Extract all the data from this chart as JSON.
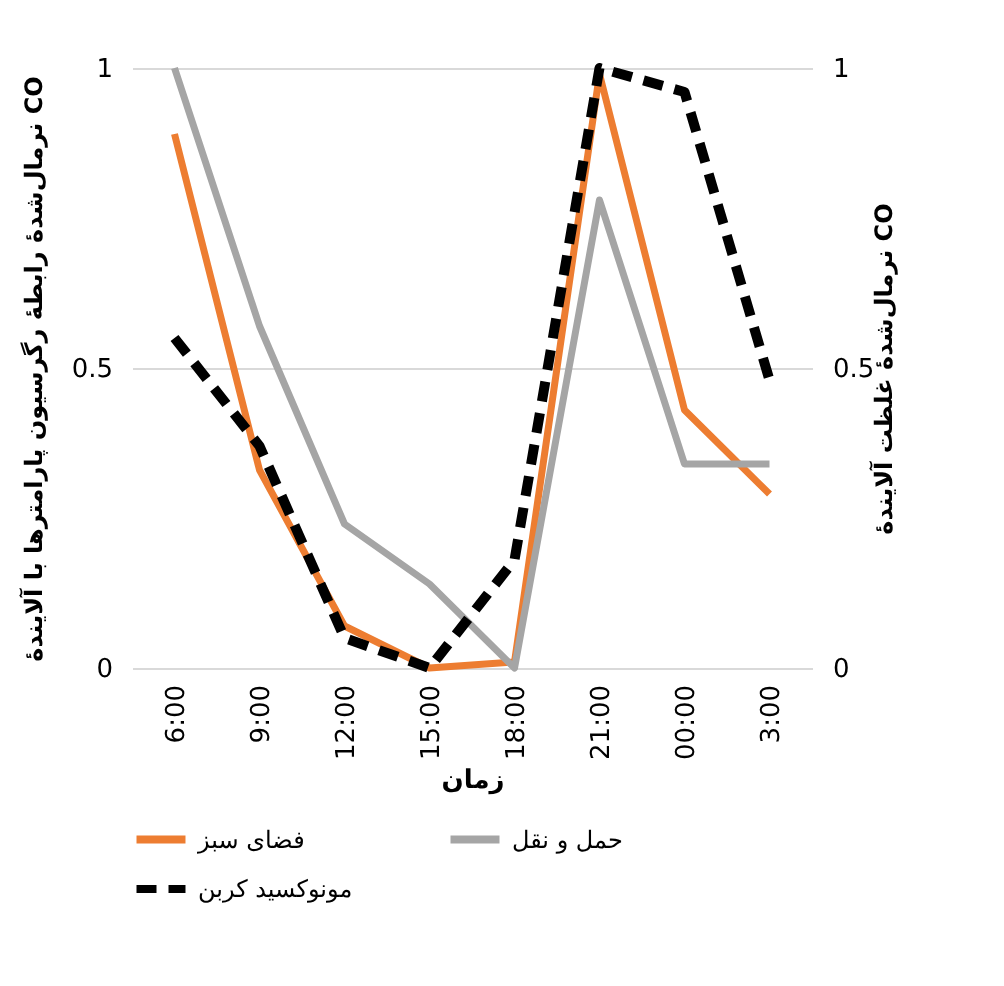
{
  "chart_data": {
    "type": "line",
    "xlabel": "زمان",
    "ylabel": "نرمال‌شدهٔ رابطهٔ رگرسیون پارامترها با آلایندهٔ CO",
    "y2label": "نرمال‌شدهٔ غلظت آلایندهٔ CO",
    "categories": [
      "6:00",
      "9:00",
      "12:00",
      "15:00",
      "18:00",
      "21:00",
      "00:00",
      "3:00"
    ],
    "series": [
      {
        "name": "فضای سبز",
        "color": "#ed7d31",
        "values": [
          0.89,
          0.33,
          0.07,
          0.0,
          0.01,
          0.99,
          0.43,
          0.29
        ]
      },
      {
        "name": "حمل و نقل",
        "color": "#a5a5a5",
        "values": [
          1.0,
          0.57,
          0.24,
          0.14,
          0.0,
          0.78,
          0.34,
          0.34
        ]
      },
      {
        "name": "مونوکسید کربن",
        "color": "#000000",
        "values": [
          0.55,
          0.37,
          0.05,
          0.0,
          0.18,
          1.0,
          0.96,
          0.48
        ],
        "axis": "y2",
        "line_style": "dashed"
      }
    ],
    "ylim": [
      0,
      1
    ],
    "yticks": [
      0,
      0.5,
      1
    ],
    "y2lim": [
      0,
      1
    ],
    "y2ticks": [
      0,
      0.5,
      1
    ],
    "grid": "y",
    "legend": "bottom",
    "line_style": "solid"
  }
}
